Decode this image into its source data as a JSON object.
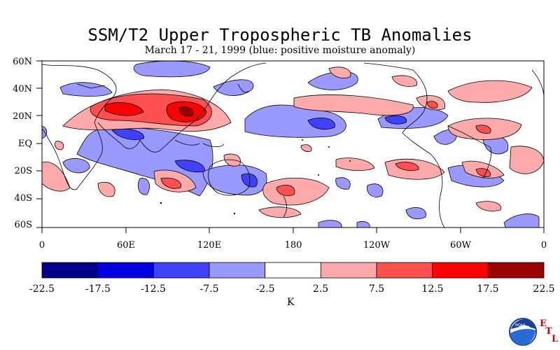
{
  "title": "SSM/T2 Upper Tropospheric TB Anomalies",
  "subtitle": "March 17 - 21, 1999 (blue: positive moisture anomaly)",
  "lat_labels": [
    "60N",
    "40N",
    "20N",
    "EQ",
    "20S",
    "40S",
    "60S"
  ],
  "lon_labels": [
    "0",
    "60E",
    "120E",
    "180",
    "120W",
    "60W",
    "0"
  ],
  "colorbar": {
    "unit": "K",
    "ticks": [
      "-22.5",
      "-17.5",
      "-12.5",
      "-7.5",
      "-2.5",
      "2.5",
      "7.5",
      "12.5",
      "17.5",
      "22.5"
    ],
    "colors": [
      "#00008b",
      "#0000e0",
      "#4040ff",
      "#9999ff",
      "#ffffff",
      "#ffaaaa",
      "#ff4f4f",
      "#ff0000",
      "#990000"
    ]
  },
  "logo": {
    "text": "NOAA",
    "lab_letters": [
      "E",
      "T",
      "L"
    ]
  }
}
